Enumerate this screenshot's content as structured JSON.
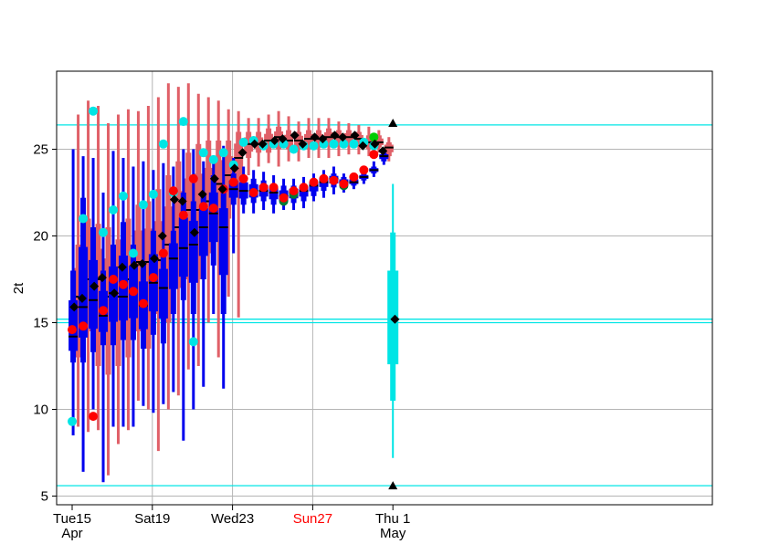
{
  "chart_data": {
    "type": "boxplot",
    "ylabel": "2t",
    "ylim": [
      4.5,
      29.5
    ],
    "yticks": [
      5,
      10,
      15,
      20,
      25
    ],
    "grid": true,
    "x_ticks": [
      {
        "day": 0,
        "lines": [
          "Tue15",
          "Apr"
        ],
        "color": "#000000"
      },
      {
        "day": 4,
        "lines": [
          "Sat19"
        ],
        "color": "#000000"
      },
      {
        "day": 8,
        "lines": [
          "Wed23"
        ],
        "color": "#000000"
      },
      {
        "day": 12,
        "lines": [
          "Sun27"
        ],
        "color": "#ff0000"
      },
      {
        "day": 16,
        "lines": [
          "Thu 1",
          "May"
        ],
        "color": "#000000"
      }
    ],
    "reference_lines": [
      26.4,
      15.2,
      15.0,
      5.6
    ],
    "colors": {
      "blue": "#0000ee",
      "salmon": "#e06068",
      "cyan": "#00e5e5",
      "red": "#ff0000",
      "black": "#000000",
      "green": "#00cc00",
      "darkgreen": "#007a33"
    },
    "blue_boxes": [
      {
        "x": 0.05,
        "w1": 8.5,
        "q1": 12.7,
        "med": 14.2,
        "q3": 18.0,
        "w2": 25.0
      },
      {
        "x": 0.55,
        "w1": 6.4,
        "q1": 12.7,
        "med": 15.9,
        "q3": 22.2,
        "w2": 24.6
      },
      {
        "x": 1.05,
        "w1": 10.0,
        "q1": 13.3,
        "med": 16.3,
        "q3": 20.5,
        "w2": 24.5
      },
      {
        "x": 1.55,
        "w1": 5.8,
        "q1": 13.7,
        "med": 15.4,
        "q3": 18.0,
        "w2": 22.5
      },
      {
        "x": 2.05,
        "w1": 9.0,
        "q1": 13.7,
        "med": 16.7,
        "q3": 19.5,
        "w2": 24.9
      },
      {
        "x": 2.55,
        "w1": 9.0,
        "q1": 14.0,
        "med": 16.5,
        "q3": 20.8,
        "w2": 24.5
      },
      {
        "x": 3.05,
        "w1": 9.0,
        "q1": 14.0,
        "med": 16.8,
        "q3": 19.5,
        "w2": 24.0
      },
      {
        "x": 3.55,
        "w1": 10.2,
        "q1": 13.5,
        "med": 16.0,
        "q3": 18.5,
        "w2": 24.3
      },
      {
        "x": 4.05,
        "w1": 9.8,
        "q1": 14.3,
        "med": 17.3,
        "q3": 20.3,
        "w2": 23.8
      },
      {
        "x": 4.55,
        "w1": 10.3,
        "q1": 13.8,
        "med": 17.0,
        "q3": 19.0,
        "w2": 24.2
      },
      {
        "x": 5.05,
        "w1": 11.0,
        "q1": 15.5,
        "med": 18.7,
        "q3": 20.3,
        "w2": 24.0
      },
      {
        "x": 5.55,
        "w1": 8.2,
        "q1": 16.3,
        "med": 19.3,
        "q3": 22.5,
        "w2": 25.0
      },
      {
        "x": 6.05,
        "w1": 10.0,
        "q1": 15.5,
        "med": 19.5,
        "q3": 22.0,
        "w2": 25.0
      },
      {
        "x": 6.55,
        "w1": 11.3,
        "q1": 17.5,
        "med": 20.5,
        "q3": 22.5,
        "w2": 24.3
      },
      {
        "x": 7.05,
        "w1": 15.5,
        "q1": 18.3,
        "med": 21.3,
        "q3": 23.5,
        "w2": 24.5
      },
      {
        "x": 7.55,
        "w1": 11.2,
        "q1": 15.5,
        "med": 20.5,
        "q3": 22.5,
        "w2": 25.2
      },
      {
        "x": 8.05,
        "w1": 19.0,
        "q1": 21.8,
        "med": 22.7,
        "q3": 23.6,
        "w2": 24.5
      },
      {
        "x": 8.55,
        "w1": 21.3,
        "q1": 21.8,
        "med": 22.6,
        "q3": 23.5,
        "w2": 24.0
      },
      {
        "x": 9.05,
        "w1": 21.3,
        "q1": 21.9,
        "med": 22.6,
        "q3": 23.3,
        "w2": 23.8
      },
      {
        "x": 9.55,
        "w1": 21.5,
        "q1": 22.0,
        "med": 22.6,
        "q3": 23.2,
        "w2": 23.7
      },
      {
        "x": 10.05,
        "w1": 21.3,
        "q1": 21.8,
        "med": 22.5,
        "q3": 23.0,
        "w2": 23.5
      },
      {
        "x": 10.55,
        "w1": 21.5,
        "q1": 21.8,
        "med": 22.3,
        "q3": 22.9,
        "w2": 23.3
      },
      {
        "x": 11.05,
        "w1": 21.5,
        "q1": 21.9,
        "med": 22.5,
        "q3": 22.9,
        "w2": 23.3
      },
      {
        "x": 11.55,
        "w1": 21.6,
        "q1": 22.0,
        "med": 22.6,
        "q3": 23.0,
        "w2": 23.4
      },
      {
        "x": 12.05,
        "w1": 22.0,
        "q1": 22.3,
        "med": 22.9,
        "q3": 23.2,
        "w2": 23.6
      },
      {
        "x": 12.55,
        "w1": 22.2,
        "q1": 22.6,
        "med": 23.1,
        "q3": 23.5,
        "w2": 23.8
      },
      {
        "x": 13.05,
        "w1": 22.4,
        "q1": 22.8,
        "med": 23.3,
        "q3": 23.6,
        "w2": 24.0
      },
      {
        "x": 13.55,
        "w1": 22.5,
        "q1": 22.8,
        "med": 23.1,
        "q3": 23.4,
        "w2": 23.6
      },
      {
        "x": 14.05,
        "w1": 22.7,
        "q1": 22.9,
        "med": 23.1,
        "q3": 23.4,
        "w2": 23.6
      },
      {
        "x": 14.55,
        "w1": 23.0,
        "q1": 23.2,
        "med": 23.4,
        "q3": 23.6,
        "w2": 23.8
      },
      {
        "x": 15.05,
        "w1": 23.4,
        "q1": 23.6,
        "med": 23.8,
        "q3": 24.0,
        "w2": 24.3
      },
      {
        "x": 15.55,
        "w1": 24.1,
        "q1": 24.3,
        "med": 24.6,
        "q3": 24.8,
        "w2": 25.0
      }
    ],
    "salmon_boxes": [
      {
        "x": 0.3,
        "w1": 9.0,
        "q1": 13.0,
        "med": 16.5,
        "q3": 19.5,
        "w2": 27.0
      },
      {
        "x": 0.8,
        "w1": 8.7,
        "q1": 14.5,
        "med": 17.5,
        "q3": 21.0,
        "w2": 27.8
      },
      {
        "x": 1.3,
        "w1": 8.8,
        "q1": 12.5,
        "med": 17.5,
        "q3": 20.7,
        "w2": 27.5
      },
      {
        "x": 1.8,
        "w1": 6.2,
        "q1": 12.0,
        "med": 16.5,
        "q3": 20.5,
        "w2": 26.5
      },
      {
        "x": 2.3,
        "w1": 8.0,
        "q1": 12.5,
        "med": 16.5,
        "q3": 19.8,
        "w2": 27.0
      },
      {
        "x": 2.8,
        "w1": 8.8,
        "q1": 13.0,
        "med": 17.5,
        "q3": 21.0,
        "w2": 27.3
      },
      {
        "x": 3.3,
        "w1": 10.5,
        "q1": 14.5,
        "med": 18.5,
        "q3": 21.8,
        "w2": 27.2
      },
      {
        "x": 3.8,
        "w1": 10.0,
        "q1": 13.5,
        "med": 18.5,
        "q3": 22.0,
        "w2": 27.5
      },
      {
        "x": 4.3,
        "w1": 7.6,
        "q1": 15.5,
        "med": 18.6,
        "q3": 22.7,
        "w2": 28.0
      },
      {
        "x": 4.8,
        "w1": 10.0,
        "q1": 15.0,
        "med": 19.5,
        "q3": 23.5,
        "w2": 28.8
      },
      {
        "x": 5.3,
        "w1": 10.8,
        "q1": 17.0,
        "med": 20.5,
        "q3": 24.3,
        "w2": 28.6
      },
      {
        "x": 5.8,
        "w1": 12.3,
        "q1": 17.5,
        "med": 21.5,
        "q3": 24.8,
        "w2": 28.8
      },
      {
        "x": 6.3,
        "w1": 12.5,
        "q1": 17.5,
        "med": 21.5,
        "q3": 25.3,
        "w2": 28.2
      },
      {
        "x": 6.8,
        "w1": 15.0,
        "q1": 19.0,
        "med": 22.0,
        "q3": 25.5,
        "w2": 28.0
      },
      {
        "x": 7.3,
        "w1": 13.0,
        "q1": 20.5,
        "med": 23.0,
        "q3": 25.5,
        "w2": 27.8
      },
      {
        "x": 7.8,
        "w1": 16.5,
        "q1": 21.0,
        "med": 23.5,
        "q3": 25.5,
        "w2": 27.3
      },
      {
        "x": 8.3,
        "w1": 15.3,
        "q1": 22.5,
        "med": 24.5,
        "q3": 26.0,
        "w2": 27.2
      },
      {
        "x": 8.8,
        "w1": 23.5,
        "q1": 24.5,
        "med": 25.3,
        "q3": 26.0,
        "w2": 26.8
      },
      {
        "x": 9.3,
        "w1": 24.0,
        "q1": 24.8,
        "med": 25.3,
        "q3": 26.0,
        "w2": 26.8
      },
      {
        "x": 9.8,
        "w1": 24.2,
        "q1": 24.8,
        "med": 25.5,
        "q3": 26.2,
        "w2": 27.0
      },
      {
        "x": 10.3,
        "w1": 24.0,
        "q1": 25.0,
        "med": 25.7,
        "q3": 26.3,
        "w2": 27.2
      },
      {
        "x": 10.8,
        "w1": 24.3,
        "q1": 25.0,
        "med": 25.5,
        "q3": 26.1,
        "w2": 26.9
      },
      {
        "x": 11.3,
        "w1": 24.3,
        "q1": 25.0,
        "med": 25.5,
        "q3": 26.0,
        "w2": 26.6
      },
      {
        "x": 11.8,
        "w1": 24.5,
        "q1": 25.0,
        "med": 25.6,
        "q3": 26.1,
        "w2": 26.8
      },
      {
        "x": 12.3,
        "w1": 24.5,
        "q1": 25.1,
        "med": 25.6,
        "q3": 26.1,
        "w2": 26.8
      },
      {
        "x": 12.8,
        "w1": 24.5,
        "q1": 25.2,
        "med": 25.7,
        "q3": 26.2,
        "w2": 26.8
      },
      {
        "x": 13.3,
        "w1": 24.6,
        "q1": 25.2,
        "med": 25.7,
        "q3": 26.1,
        "w2": 26.6
      },
      {
        "x": 13.8,
        "w1": 24.7,
        "q1": 25.2,
        "med": 25.7,
        "q3": 26.1,
        "w2": 26.5
      },
      {
        "x": 14.3,
        "w1": 24.7,
        "q1": 25.2,
        "med": 25.6,
        "q3": 26.0,
        "w2": 26.4
      },
      {
        "x": 14.8,
        "w1": 24.6,
        "q1": 25.0,
        "med": 25.4,
        "q3": 25.8,
        "w2": 26.3
      },
      {
        "x": 15.3,
        "w1": 24.8,
        "q1": 25.1,
        "med": 25.4,
        "q3": 25.8,
        "w2": 26.1
      },
      {
        "x": 15.8,
        "w1": 24.3,
        "q1": 24.6,
        "med": 25.1,
        "q3": 25.4,
        "w2": 25.7
      }
    ],
    "summary_box": {
      "x": 16.0,
      "w1": 7.2,
      "q1": 12.6,
      "med": 15.2,
      "q3": 18.0,
      "w2": 23.0
    },
    "summary_triangles": [
      {
        "x": 16.0,
        "y": 26.5
      },
      {
        "x": 16.0,
        "y": 5.6
      }
    ],
    "black_diamonds": [
      {
        "x": 0.0,
        "y": 15.9
      },
      {
        "x": 0.4,
        "y": 16.4
      },
      {
        "x": 1.0,
        "y": 17.1
      },
      {
        "x": 1.4,
        "y": 17.6
      },
      {
        "x": 2.0,
        "y": 16.7
      },
      {
        "x": 2.4,
        "y": 18.2
      },
      {
        "x": 3.0,
        "y": 18.3
      },
      {
        "x": 3.4,
        "y": 18.4
      },
      {
        "x": 4.0,
        "y": 18.7
      },
      {
        "x": 4.4,
        "y": 20.0
      },
      {
        "x": 5.0,
        "y": 22.1
      },
      {
        "x": 5.4,
        "y": 22.0
      },
      {
        "x": 6.0,
        "y": 20.2
      },
      {
        "x": 6.4,
        "y": 22.4
      },
      {
        "x": 7.0,
        "y": 23.3
      },
      {
        "x": 7.4,
        "y": 22.7
      },
      {
        "x": 8.0,
        "y": 23.9
      },
      {
        "x": 8.4,
        "y": 24.8
      },
      {
        "x": 9.0,
        "y": 25.3
      },
      {
        "x": 9.4,
        "y": 25.3
      },
      {
        "x": 10.0,
        "y": 25.5
      },
      {
        "x": 10.4,
        "y": 25.6
      },
      {
        "x": 11.0,
        "y": 25.8
      },
      {
        "x": 11.4,
        "y": 25.3
      },
      {
        "x": 12.0,
        "y": 25.7
      },
      {
        "x": 12.4,
        "y": 25.6
      },
      {
        "x": 13.0,
        "y": 25.8
      },
      {
        "x": 13.4,
        "y": 25.7
      },
      {
        "x": 14.0,
        "y": 25.8
      },
      {
        "x": 14.4,
        "y": 25.2
      },
      {
        "x": 15.0,
        "y": 25.3
      },
      {
        "x": 15.4,
        "y": 24.9
      },
      {
        "x": 16.0,
        "y": 15.2
      }
    ],
    "cyan_dots": [
      {
        "x": 0.0,
        "y": 9.3
      },
      {
        "x": 0.55,
        "y": 21.0
      },
      {
        "x": 1.05,
        "y": 27.2
      },
      {
        "x": 1.55,
        "y": 20.2
      },
      {
        "x": 2.05,
        "y": 21.5
      },
      {
        "x": 2.55,
        "y": 22.3
      },
      {
        "x": 3.05,
        "y": 19.0
      },
      {
        "x": 3.55,
        "y": 21.8
      },
      {
        "x": 4.05,
        "y": 22.4
      },
      {
        "x": 4.55,
        "y": 25.3
      },
      {
        "x": 5.05,
        "y": 22.5
      },
      {
        "x": 5.55,
        "y": 26.6
      },
      {
        "x": 6.05,
        "y": 13.9
      },
      {
        "x": 6.55,
        "y": 24.8
      },
      {
        "x": 7.05,
        "y": 24.4
      },
      {
        "x": 7.55,
        "y": 24.8
      },
      {
        "x": 8.05,
        "y": 24.1
      },
      {
        "x": 8.55,
        "y": 25.4
      },
      {
        "x": 9.05,
        "y": 25.5
      },
      {
        "x": 9.55,
        "y": 25.2
      },
      {
        "x": 10.05,
        "y": 25.3
      },
      {
        "x": 10.55,
        "y": 25.3
      },
      {
        "x": 11.05,
        "y": 25.0
      },
      {
        "x": 11.55,
        "y": 25.2
      },
      {
        "x": 12.05,
        "y": 25.2
      },
      {
        "x": 12.55,
        "y": 25.3
      },
      {
        "x": 13.05,
        "y": 25.3
      },
      {
        "x": 13.55,
        "y": 25.3
      },
      {
        "x": 14.05,
        "y": 25.3
      },
      {
        "x": 14.55,
        "y": 25.4
      },
      {
        "x": 15.05,
        "y": 25.2
      }
    ],
    "red_dots": [
      {
        "x": 0.0,
        "y": 14.6
      },
      {
        "x": 0.55,
        "y": 14.8
      },
      {
        "x": 1.05,
        "y": 9.6
      },
      {
        "x": 1.55,
        "y": 15.7
      },
      {
        "x": 2.05,
        "y": 17.5
      },
      {
        "x": 2.55,
        "y": 17.2
      },
      {
        "x": 3.05,
        "y": 16.8
      },
      {
        "x": 3.55,
        "y": 16.1
      },
      {
        "x": 4.05,
        "y": 17.6
      },
      {
        "x": 4.55,
        "y": 19.0
      },
      {
        "x": 5.05,
        "y": 22.6
      },
      {
        "x": 5.55,
        "y": 21.2
      },
      {
        "x": 6.05,
        "y": 23.3
      },
      {
        "x": 6.55,
        "y": 21.7
      },
      {
        "x": 7.05,
        "y": 21.6
      },
      {
        "x": 7.55,
        "y": 22.7
      },
      {
        "x": 8.05,
        "y": 23.1
      },
      {
        "x": 8.55,
        "y": 23.3
      },
      {
        "x": 9.05,
        "y": 22.5
      },
      {
        "x": 9.55,
        "y": 22.8
      },
      {
        "x": 10.05,
        "y": 22.8
      },
      {
        "x": 10.55,
        "y": 22.2
      },
      {
        "x": 11.05,
        "y": 22.6
      },
      {
        "x": 11.55,
        "y": 22.8
      },
      {
        "x": 12.05,
        "y": 23.1
      },
      {
        "x": 12.55,
        "y": 23.3
      },
      {
        "x": 13.05,
        "y": 23.2
      },
      {
        "x": 13.55,
        "y": 23.0
      },
      {
        "x": 14.05,
        "y": 23.4
      },
      {
        "x": 14.55,
        "y": 23.8
      },
      {
        "x": 15.05,
        "y": 24.7
      }
    ],
    "green_dots": [
      {
        "x": 10.55,
        "y": 22.0
      },
      {
        "x": 11.05,
        "y": 22.4
      },
      {
        "x": 13.55,
        "y": 22.9
      },
      {
        "x": 15.05,
        "y": 25.7
      }
    ]
  }
}
